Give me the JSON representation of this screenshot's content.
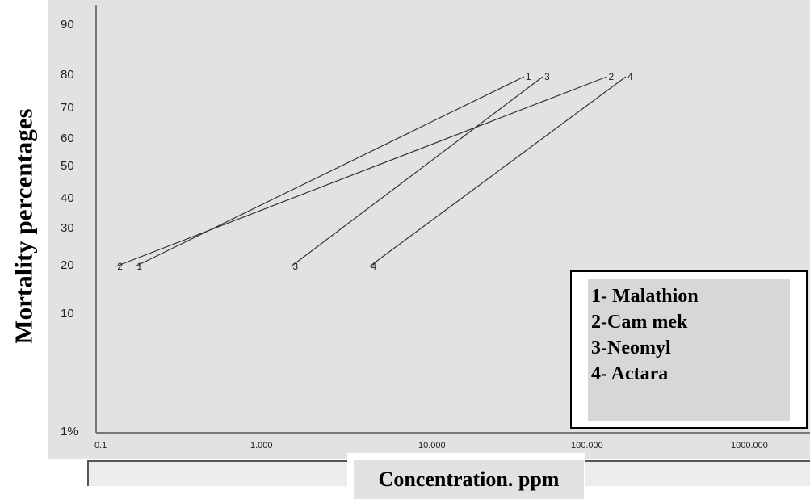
{
  "chart_data": {
    "type": "line",
    "ylabel": "Mortality percentages",
    "xlabel": "Concentration. ppm",
    "x_scale": "log",
    "xlim": [
      0.1,
      1000
    ],
    "x_ticks": [
      "0.1",
      "1.000",
      "10.000",
      "100.000",
      "1000.000"
    ],
    "y_ticks": [
      "90",
      "80",
      "70",
      "60",
      "50",
      "40",
      "30",
      "20",
      "10",
      "1%"
    ],
    "series": [
      {
        "name": "1- Malathion",
        "marker": "1",
        "x": [
          0.16,
          50
        ],
        "y": [
          20,
          80
        ]
      },
      {
        "name": "2-Cam mek",
        "marker": "2",
        "x": [
          0.12,
          170
        ],
        "y": [
          20,
          80
        ]
      },
      {
        "name": "3-Neomyl",
        "marker": "3",
        "x": [
          1.6,
          66
        ],
        "y": [
          20,
          80
        ]
      },
      {
        "name": "4- Actara",
        "marker": "4",
        "x": [
          5.1,
          225
        ],
        "y": [
          20,
          80
        ]
      }
    ],
    "legend_position": "bottom-right",
    "grid": false
  }
}
